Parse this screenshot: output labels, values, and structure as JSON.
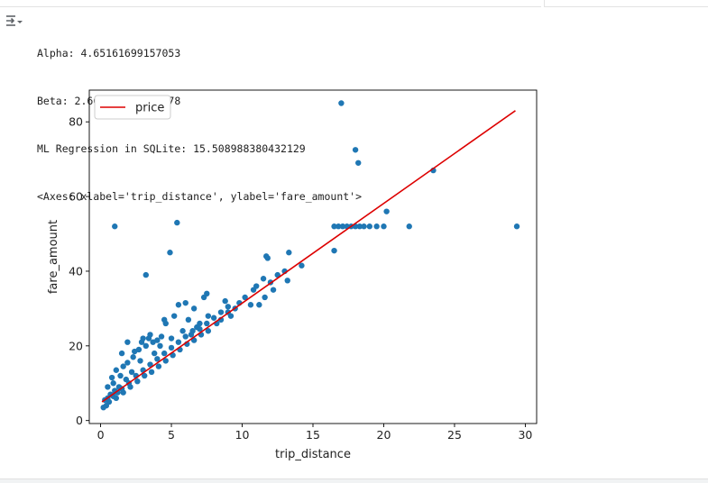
{
  "output": {
    "lines": [
      "Alpha: 4.65161699157053",
      "Beta: 2.661441728279978",
      "ML Regression in SQLite: 15.508988380432129",
      "<Axes: xlabel='trip_distance', ylabel='fare_amount'>"
    ],
    "icon": "output-toggle-icon"
  },
  "chart_data": {
    "type": "scatter",
    "xlabel": "trip_distance",
    "ylabel": "fare_amount",
    "xlim": [
      -0.8,
      30.8
    ],
    "ylim": [
      -0.8,
      88.5
    ],
    "xticks": [
      0,
      5,
      10,
      15,
      20,
      25,
      30
    ],
    "yticks": [
      0,
      20,
      40,
      60,
      80
    ],
    "grid": false,
    "legend": {
      "placement": "top-left",
      "entries": [
        "price"
      ]
    },
    "colors": {
      "points": "#1f77b4",
      "line": "#dd0000",
      "axes": "#000000"
    },
    "series": [
      {
        "type": "scatter",
        "points": [
          [
            17,
            85
          ],
          [
            18,
            72.5
          ],
          [
            18.2,
            69
          ],
          [
            23.5,
            67
          ],
          [
            20.2,
            56
          ],
          [
            1,
            52
          ],
          [
            5.4,
            53
          ],
          [
            16.5,
            52
          ],
          [
            16.8,
            52
          ],
          [
            17.1,
            52
          ],
          [
            17.4,
            52
          ],
          [
            17.7,
            52
          ],
          [
            18,
            52
          ],
          [
            18.3,
            52
          ],
          [
            18.6,
            52
          ],
          [
            19,
            52
          ],
          [
            19.5,
            52
          ],
          [
            20,
            52
          ],
          [
            21.8,
            52
          ],
          [
            29.4,
            52
          ],
          [
            16.5,
            45.5
          ],
          [
            4.9,
            45
          ],
          [
            3.2,
            39
          ],
          [
            13.3,
            45
          ],
          [
            11.7,
            44
          ],
          [
            11.8,
            43.5
          ],
          [
            14.2,
            41.5
          ],
          [
            13,
            40
          ],
          [
            12.5,
            39
          ],
          [
            13.2,
            37.5
          ],
          [
            11.5,
            38
          ],
          [
            12,
            37
          ],
          [
            11,
            36
          ],
          [
            12.2,
            35
          ],
          [
            10.8,
            35
          ],
          [
            11.6,
            33
          ],
          [
            10.2,
            33
          ],
          [
            9.8,
            31.5
          ],
          [
            10.6,
            31
          ],
          [
            11.2,
            31
          ],
          [
            7.5,
            34
          ],
          [
            7.3,
            33
          ],
          [
            6,
            31.5
          ],
          [
            5.5,
            31
          ],
          [
            6.6,
            30
          ],
          [
            4.6,
            26
          ],
          [
            3.5,
            23
          ],
          [
            4,
            21.5
          ],
          [
            3,
            22
          ],
          [
            1.9,
            21
          ],
          [
            1.5,
            18
          ],
          [
            4.5,
            27
          ],
          [
            5.2,
            28
          ],
          [
            6.2,
            27
          ],
          [
            6.8,
            25
          ],
          [
            5.8,
            24
          ],
          [
            7.6,
            28
          ],
          [
            8.2,
            26
          ],
          [
            8.5,
            27
          ],
          [
            9,
            29
          ],
          [
            9.5,
            30
          ],
          [
            8.8,
            32
          ],
          [
            9.2,
            28
          ],
          [
            7,
            26
          ],
          [
            6.4,
            23
          ],
          [
            5,
            22
          ],
          [
            4.2,
            20
          ],
          [
            3.8,
            18
          ],
          [
            2.8,
            16
          ],
          [
            2.2,
            13
          ],
          [
            1.8,
            11
          ],
          [
            1.3,
            9
          ],
          [
            1,
            8
          ],
          [
            0.7,
            7
          ],
          [
            0.5,
            6
          ],
          [
            0.3,
            5.5
          ],
          [
            0.2,
            3.5
          ],
          [
            0.4,
            4
          ],
          [
            0.6,
            5
          ],
          [
            0.9,
            6.5
          ],
          [
            1.2,
            7.5
          ],
          [
            1.5,
            8.5
          ],
          [
            2,
            10
          ],
          [
            2.5,
            12
          ],
          [
            3,
            13.5
          ],
          [
            3.5,
            15
          ],
          [
            4,
            16.5
          ],
          [
            4.5,
            18
          ],
          [
            5,
            19.5
          ],
          [
            5.5,
            21
          ],
          [
            6,
            22.5
          ],
          [
            6.5,
            24
          ],
          [
            7,
            24.5
          ],
          [
            7.5,
            26
          ],
          [
            8,
            27.5
          ],
          [
            8.5,
            29
          ],
          [
            9,
            30.5
          ],
          [
            1.1,
            13.5
          ],
          [
            1.6,
            14.5
          ],
          [
            2.3,
            17
          ],
          [
            2.7,
            19
          ],
          [
            0.8,
            11.5
          ],
          [
            3.2,
            20
          ],
          [
            3.7,
            21
          ],
          [
            4.3,
            22.5
          ],
          [
            0.5,
            9
          ],
          [
            0.9,
            10
          ],
          [
            1.4,
            12
          ],
          [
            1.9,
            15.5
          ],
          [
            2.4,
            18.5
          ],
          [
            2.9,
            21
          ],
          [
            3.4,
            22
          ],
          [
            1.1,
            6
          ],
          [
            1.6,
            7.5
          ],
          [
            2.1,
            9
          ],
          [
            2.6,
            10.5
          ],
          [
            3.1,
            12
          ],
          [
            3.6,
            13
          ],
          [
            4.1,
            14.5
          ],
          [
            4.6,
            16
          ],
          [
            5.1,
            17.5
          ],
          [
            5.6,
            19
          ],
          [
            6.1,
            20.5
          ],
          [
            6.6,
            21.5
          ],
          [
            7.1,
            23
          ],
          [
            7.6,
            24
          ]
        ]
      },
      {
        "type": "line",
        "name": "price",
        "x": [
          0.1,
          29.3
        ],
        "y": [
          5,
          83
        ]
      }
    ]
  }
}
